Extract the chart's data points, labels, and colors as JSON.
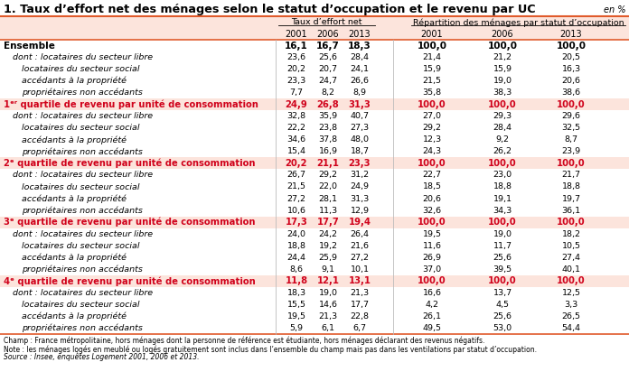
{
  "title": "1. Taux d’effort net des ménages selon le statut d’occupation et le revenu par UC",
  "unit_label": "en %",
  "col_header_group1": "Taux d’effort net",
  "col_header_group2": "Répartition des ménages par statut d’occupation",
  "years": [
    "2001",
    "2006",
    "2013",
    "2001",
    "2006",
    "2013"
  ],
  "rows": [
    {
      "label": "Ensemble",
      "style": "ensemble",
      "indent": 0,
      "values": [
        "16,1",
        "16,7",
        "18,3",
        "100,0",
        "100,0",
        "100,0"
      ]
    },
    {
      "label": "dont : locataires du secteur libre",
      "style": "sub1",
      "indent": 1,
      "values": [
        "23,6",
        "25,6",
        "28,4",
        "21,4",
        "21,2",
        "20,5"
      ]
    },
    {
      "label": "locataires du secteur social",
      "style": "sub2",
      "indent": 2,
      "values": [
        "20,2",
        "20,7",
        "24,1",
        "15,9",
        "15,9",
        "16,3"
      ]
    },
    {
      "label": "accédants à la propriété",
      "style": "sub2",
      "indent": 2,
      "values": [
        "23,3",
        "24,7",
        "26,6",
        "21,5",
        "19,0",
        "20,6"
      ]
    },
    {
      "label": "propriétaires non accédants",
      "style": "sub2",
      "indent": 2,
      "values": [
        "7,7",
        "8,2",
        "8,9",
        "35,8",
        "38,3",
        "38,6"
      ]
    },
    {
      "label": "1ᵉʳ quartile de revenu par unité de consommation",
      "style": "quartile",
      "indent": 0,
      "values": [
        "24,9",
        "26,8",
        "31,3",
        "100,0",
        "100,0",
        "100,0"
      ]
    },
    {
      "label": "dont : locataires du secteur libre",
      "style": "sub1",
      "indent": 1,
      "values": [
        "32,8",
        "35,9",
        "40,7",
        "27,0",
        "29,3",
        "29,6"
      ]
    },
    {
      "label": "locataires du secteur social",
      "style": "sub2",
      "indent": 2,
      "values": [
        "22,2",
        "23,8",
        "27,3",
        "29,2",
        "28,4",
        "32,5"
      ]
    },
    {
      "label": "accédants à la propriété",
      "style": "sub2",
      "indent": 2,
      "values": [
        "34,6",
        "37,8",
        "48,0",
        "12,3",
        "9,2",
        "8,7"
      ]
    },
    {
      "label": "propriétaires non accédants",
      "style": "sub2",
      "indent": 2,
      "values": [
        "15,4",
        "16,9",
        "18,7",
        "24,3",
        "26,2",
        "23,9"
      ]
    },
    {
      "label": "2ᵉ quartile de revenu par unité de consommation",
      "style": "quartile",
      "indent": 0,
      "values": [
        "20,2",
        "21,1",
        "23,3",
        "100,0",
        "100,0",
        "100,0"
      ]
    },
    {
      "label": "dont : locataires du secteur libre",
      "style": "sub1",
      "indent": 1,
      "values": [
        "26,7",
        "29,2",
        "31,2",
        "22,7",
        "23,0",
        "21,7"
      ]
    },
    {
      "label": "locataires du secteur social",
      "style": "sub2",
      "indent": 2,
      "values": [
        "21,5",
        "22,0",
        "24,9",
        "18,5",
        "18,8",
        "18,8"
      ]
    },
    {
      "label": "accédants à la propriété",
      "style": "sub2",
      "indent": 2,
      "values": [
        "27,2",
        "28,1",
        "31,3",
        "20,6",
        "19,1",
        "19,7"
      ]
    },
    {
      "label": "propriétaires non accédants",
      "style": "sub2",
      "indent": 2,
      "values": [
        "10,6",
        "11,3",
        "12,9",
        "32,6",
        "34,3",
        "36,1"
      ]
    },
    {
      "label": "3ᵉ quartile de revenu par unité de consommation",
      "style": "quartile",
      "indent": 0,
      "values": [
        "17,3",
        "17,7",
        "19,4",
        "100,0",
        "100,0",
        "100,0"
      ]
    },
    {
      "label": "dont : locataires du secteur libre",
      "style": "sub1",
      "indent": 1,
      "values": [
        "24,0",
        "24,2",
        "26,4",
        "19,5",
        "19,0",
        "18,2"
      ]
    },
    {
      "label": "locataires du secteur social",
      "style": "sub2",
      "indent": 2,
      "values": [
        "18,8",
        "19,2",
        "21,6",
        "11,6",
        "11,7",
        "10,5"
      ]
    },
    {
      "label": "accédants à la propriété",
      "style": "sub2",
      "indent": 2,
      "values": [
        "24,4",
        "25,9",
        "27,2",
        "26,9",
        "25,6",
        "27,4"
      ]
    },
    {
      "label": "propriétaires non accédants",
      "style": "sub2",
      "indent": 2,
      "values": [
        "8,6",
        "9,1",
        "10,1",
        "37,0",
        "39,5",
        "40,1"
      ]
    },
    {
      "label": "4ᵉ quartile de revenu par unité de consommation",
      "style": "quartile",
      "indent": 0,
      "values": [
        "11,8",
        "12,1",
        "13,1",
        "100,0",
        "100,0",
        "100,0"
      ]
    },
    {
      "label": "dont : locataires du secteur libre",
      "style": "sub1",
      "indent": 1,
      "values": [
        "18,3",
        "19,0",
        "21,3",
        "16,6",
        "13,7",
        "12,5"
      ]
    },
    {
      "label": "locataires du secteur social",
      "style": "sub2",
      "indent": 2,
      "values": [
        "15,5",
        "14,6",
        "17,7",
        "4,2",
        "4,5",
        "3,3"
      ]
    },
    {
      "label": "accédants à la propriété",
      "style": "sub2",
      "indent": 2,
      "values": [
        "19,5",
        "21,3",
        "22,8",
        "26,1",
        "25,6",
        "26,5"
      ]
    },
    {
      "label": "propriétaires non accédants",
      "style": "sub2",
      "indent": 2,
      "values": [
        "5,9",
        "6,1",
        "6,7",
        "49,5",
        "53,0",
        "54,4"
      ]
    }
  ],
  "footnote1": "Champ : France métropolitaine, hors ménages dont la personne de référence est étudiante, hors ménages déclarant des revenus négatifs.",
  "footnote2": "Note : les ménages logés en meublé ou logés gratuitement sont inclus dans l’ensemble du champ mais pas dans les ventilations par statut d’occupation.",
  "footnote3": "Source : Insee, enquêtes Logement 2001, 2006 et 2013.",
  "color_red": "#d0021b",
  "color_black": "#000000",
  "header_bg": "#fce4dc",
  "fig_width": 6.96,
  "fig_height": 4.22,
  "dpi": 100
}
